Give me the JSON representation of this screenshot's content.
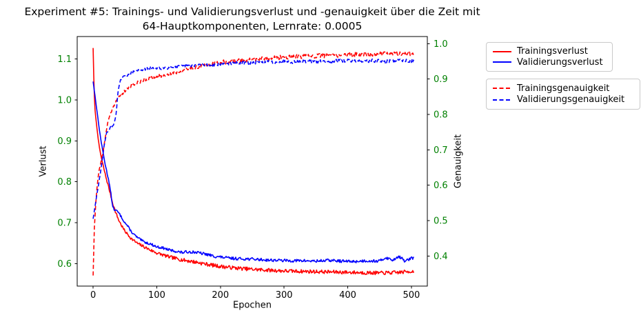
{
  "chart": {
    "title_line1": "Experiment #5: Trainings- und Validierungsverlust und -genauigkeit über die Zeit mit",
    "title_line2": "64-Hauptkomponenten, Lernrate: 0.0005",
    "xlabel": "Epochen",
    "ylabel_left": "Verlust",
    "ylabel_right": "Genauigkeit"
  },
  "colors": {
    "red_series": "#ff0000",
    "blue_series": "#0000ff",
    "axis_label_green": "#008000",
    "frame_black": "#000000",
    "legend_border": "#c9c9c9"
  },
  "legends": [
    {
      "items": [
        {
          "label": "Trainingsverlust",
          "color": "#ff0000",
          "dash": false
        },
        {
          "label": "Validierungsverlust",
          "color": "#0000ff",
          "dash": false
        }
      ]
    },
    {
      "items": [
        {
          "label": "Trainingsgenauigkeit",
          "color": "#ff0000",
          "dash": true
        },
        {
          "label": "Validierungsgenauigkeit",
          "color": "#0000ff",
          "dash": true
        }
      ]
    }
  ],
  "chart_data": {
    "type": "line",
    "title": "Experiment #5: Trainings- und Validierungsverlust und -genauigkeit über die Zeit mit 64-Hauptkomponenten, Lernrate: 0.0005",
    "xlabel": "Epochen",
    "x_axis": {
      "lim": [
        -25,
        525
      ],
      "ticks": [
        0,
        100,
        200,
        300,
        400,
        500
      ],
      "tick_labels": [
        "0",
        "100",
        "200",
        "300",
        "400",
        "500"
      ],
      "tick_color": "#000000"
    },
    "y_axis_left": {
      "label": "Verlust",
      "lim": [
        0.545,
        1.155
      ],
      "ticks": [
        0.6,
        0.7,
        0.8,
        0.9,
        1.0,
        1.1
      ],
      "tick_labels": [
        "0.6",
        "0.7",
        "0.8",
        "0.9",
        "1.0",
        "1.1"
      ],
      "tick_color": "#008000"
    },
    "y_axis_right": {
      "label": "Genauigkeit",
      "lim": [
        0.315,
        1.02
      ],
      "ticks": [
        0.4,
        0.5,
        0.6,
        0.7,
        0.8,
        0.9,
        1.0
      ],
      "tick_labels": [
        "0.4",
        "0.5",
        "0.6",
        "0.7",
        "0.8",
        "0.9",
        "1.0"
      ],
      "tick_color": "#008000"
    },
    "grid": false,
    "legend_position": "outside-right",
    "epochs_max": 504,
    "series": [
      {
        "name": "Trainingsverlust",
        "color": "#ff0000",
        "style": "solid",
        "axis": "left",
        "noise": 0.0045,
        "seed": 7,
        "points": [
          [
            0,
            1.127
          ],
          [
            1,
            1.06
          ],
          [
            2,
            1.01
          ],
          [
            3,
            0.975
          ],
          [
            5,
            0.945
          ],
          [
            8,
            0.905
          ],
          [
            10,
            0.882
          ],
          [
            13,
            0.858
          ],
          [
            16,
            0.838
          ],
          [
            20,
            0.812
          ],
          [
            25,
            0.783
          ],
          [
            30,
            0.752
          ],
          [
            35,
            0.727
          ],
          [
            40,
            0.707
          ],
          [
            45,
            0.692
          ],
          [
            50,
            0.679
          ],
          [
            60,
            0.661
          ],
          [
            70,
            0.649
          ],
          [
            80,
            0.641
          ],
          [
            90,
            0.633
          ],
          [
            100,
            0.626
          ],
          [
            120,
            0.616
          ],
          [
            140,
            0.609
          ],
          [
            160,
            0.604
          ],
          [
            180,
            0.598
          ],
          [
            200,
            0.593
          ],
          [
            225,
            0.589
          ],
          [
            250,
            0.586
          ],
          [
            275,
            0.584
          ],
          [
            300,
            0.582
          ],
          [
            330,
            0.581
          ],
          [
            360,
            0.58
          ],
          [
            390,
            0.579
          ],
          [
            420,
            0.578
          ],
          [
            450,
            0.577
          ],
          [
            475,
            0.578
          ],
          [
            500,
            0.581
          ]
        ]
      },
      {
        "name": "Validierungsverlust",
        "color": "#0000ff",
        "style": "solid",
        "axis": "left",
        "noise": 0.0035,
        "seed": 13,
        "points": [
          [
            0,
            1.045
          ],
          [
            3,
            1.01
          ],
          [
            5,
            0.985
          ],
          [
            8,
            0.95
          ],
          [
            10,
            0.925
          ],
          [
            13,
            0.895
          ],
          [
            16,
            0.868
          ],
          [
            20,
            0.835
          ],
          [
            25,
            0.8
          ],
          [
            28,
            0.77
          ],
          [
            30,
            0.745
          ],
          [
            33,
            0.732
          ],
          [
            38,
            0.728
          ],
          [
            42,
            0.72
          ],
          [
            45,
            0.712
          ],
          [
            50,
            0.7
          ],
          [
            55,
            0.69
          ],
          [
            60,
            0.678
          ],
          [
            65,
            0.67
          ],
          [
            70,
            0.663
          ],
          [
            75,
            0.658
          ],
          [
            80,
            0.653
          ],
          [
            90,
            0.648
          ],
          [
            100,
            0.641
          ],
          [
            110,
            0.638
          ],
          [
            120,
            0.633
          ],
          [
            130,
            0.63
          ],
          [
            140,
            0.627
          ],
          [
            150,
            0.629
          ],
          [
            160,
            0.628
          ],
          [
            170,
            0.625
          ],
          [
            180,
            0.622
          ],
          [
            190,
            0.618
          ],
          [
            200,
            0.616
          ],
          [
            215,
            0.613
          ],
          [
            230,
            0.612
          ],
          [
            250,
            0.611
          ],
          [
            270,
            0.609
          ],
          [
            290,
            0.608
          ],
          [
            310,
            0.607
          ],
          [
            330,
            0.607
          ],
          [
            350,
            0.606
          ],
          [
            370,
            0.608
          ],
          [
            390,
            0.606
          ],
          [
            410,
            0.605
          ],
          [
            430,
            0.607
          ],
          [
            450,
            0.606
          ],
          [
            460,
            0.615
          ],
          [
            470,
            0.608
          ],
          [
            480,
            0.618
          ],
          [
            490,
            0.606
          ],
          [
            500,
            0.613
          ]
        ]
      },
      {
        "name": "Trainingsgenauigkeit",
        "color": "#ff0000",
        "style": "dashed",
        "axis": "right",
        "noise": 0.006,
        "seed": 21,
        "points": [
          [
            0,
            0.345
          ],
          [
            2,
            0.48
          ],
          [
            4,
            0.545
          ],
          [
            6,
            0.59
          ],
          [
            8,
            0.625
          ],
          [
            10,
            0.648
          ],
          [
            13,
            0.672
          ],
          [
            16,
            0.695
          ],
          [
            20,
            0.748
          ],
          [
            24,
            0.784
          ],
          [
            28,
            0.806
          ],
          [
            32,
            0.823
          ],
          [
            36,
            0.838
          ],
          [
            40,
            0.848
          ],
          [
            45,
            0.858
          ],
          [
            50,
            0.866
          ],
          [
            55,
            0.874
          ],
          [
            60,
            0.882
          ],
          [
            70,
            0.89
          ],
          [
            80,
            0.897
          ],
          [
            90,
            0.902
          ],
          [
            100,
            0.906
          ],
          [
            115,
            0.912
          ],
          [
            130,
            0.919
          ],
          [
            145,
            0.926
          ],
          [
            160,
            0.932
          ],
          [
            175,
            0.937
          ],
          [
            190,
            0.943
          ],
          [
            200,
            0.947
          ],
          [
            220,
            0.95
          ],
          [
            240,
            0.953
          ],
          [
            260,
            0.956
          ],
          [
            280,
            0.959
          ],
          [
            300,
            0.962
          ],
          [
            320,
            0.963
          ],
          [
            340,
            0.964
          ],
          [
            360,
            0.966
          ],
          [
            380,
            0.967
          ],
          [
            400,
            0.968
          ],
          [
            425,
            0.97
          ],
          [
            450,
            0.971
          ],
          [
            475,
            0.972
          ],
          [
            500,
            0.972
          ]
        ]
      },
      {
        "name": "Validierungsgenauigkeit",
        "color": "#0000ff",
        "style": "dashed",
        "axis": "right",
        "noise": 0.005,
        "seed": 29,
        "points": [
          [
            0,
            0.505
          ],
          [
            3,
            0.54
          ],
          [
            6,
            0.575
          ],
          [
            9,
            0.607
          ],
          [
            12,
            0.64
          ],
          [
            15,
            0.682
          ],
          [
            18,
            0.72
          ],
          [
            21,
            0.745
          ],
          [
            24,
            0.755
          ],
          [
            27,
            0.762
          ],
          [
            30,
            0.766
          ],
          [
            33,
            0.773
          ],
          [
            36,
            0.8
          ],
          [
            38,
            0.845
          ],
          [
            40,
            0.872
          ],
          [
            43,
            0.895
          ],
          [
            46,
            0.903
          ],
          [
            50,
            0.908
          ],
          [
            55,
            0.913
          ],
          [
            60,
            0.917
          ],
          [
            70,
            0.924
          ],
          [
            80,
            0.928
          ],
          [
            90,
            0.93
          ],
          [
            100,
            0.929
          ],
          [
            115,
            0.932
          ],
          [
            130,
            0.934
          ],
          [
            145,
            0.936
          ],
          [
            160,
            0.94
          ],
          [
            180,
            0.94
          ],
          [
            200,
            0.943
          ],
          [
            220,
            0.944
          ],
          [
            240,
            0.946
          ],
          [
            260,
            0.947
          ],
          [
            280,
            0.948
          ],
          [
            300,
            0.95
          ],
          [
            320,
            0.948
          ],
          [
            340,
            0.951
          ],
          [
            360,
            0.949
          ],
          [
            380,
            0.951
          ],
          [
            400,
            0.952
          ],
          [
            420,
            0.95
          ],
          [
            440,
            0.952
          ],
          [
            460,
            0.95
          ],
          [
            480,
            0.953
          ],
          [
            500,
            0.951
          ]
        ]
      }
    ]
  }
}
